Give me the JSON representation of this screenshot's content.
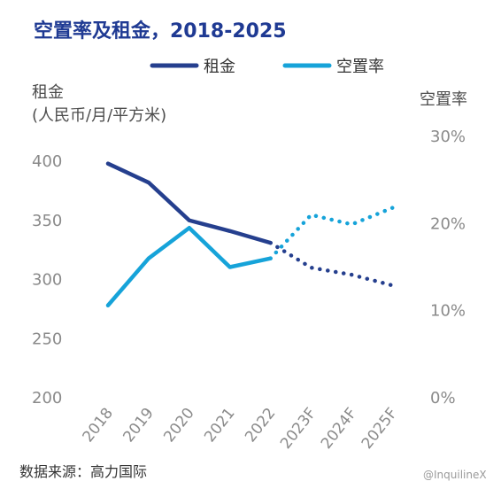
{
  "title": "空置率及租金，2018-2025",
  "source": "数据来源：高力国际",
  "watermark": "@InquilineX",
  "colors": {
    "rent": "#253f8e",
    "vacancy": "#16a3d9",
    "title": "#1f3a93"
  },
  "chart_data": {
    "type": "line",
    "categories": [
      "2018",
      "2019",
      "2020",
      "2021",
      "2022",
      "2023F",
      "2024F",
      "2025F"
    ],
    "y_left": {
      "label_line1": "租金",
      "label_line2": "(人民币/月/平方米)",
      "ticks": [
        "400",
        "350",
        "300",
        "250",
        "200"
      ],
      "range": [
        200,
        400
      ]
    },
    "y_right": {
      "label": "空置率",
      "ticks": [
        "30%",
        "20%",
        "10%",
        "0%"
      ],
      "range": [
        0,
        30
      ]
    },
    "grid": false,
    "legend_position": "top",
    "series": [
      {
        "name": "租金",
        "axis": "left",
        "values": [
          398,
          382,
          350,
          341,
          331,
          310,
          304,
          295
        ],
        "forecast_from": 4
      },
      {
        "name": "空置率",
        "axis": "right",
        "values": [
          10.6,
          16.0,
          19.5,
          15.0,
          16.0,
          21.0,
          19.9,
          21.8
        ],
        "forecast_from": 4
      }
    ]
  }
}
